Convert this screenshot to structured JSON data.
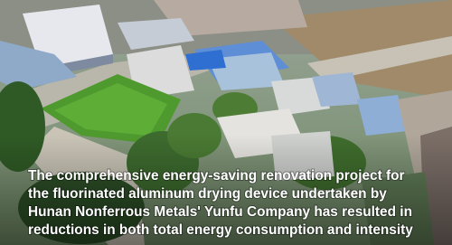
{
  "caption": {
    "lines": [
      "The comprehensive energy-saving renovation project for",
      "the fluorinated aluminum drying device undertaken by",
      "Hunan Nonferrous Metals' Yunfu Company has resulted in",
      "reductions in both total energy consumption and intensity"
    ]
  }
}
